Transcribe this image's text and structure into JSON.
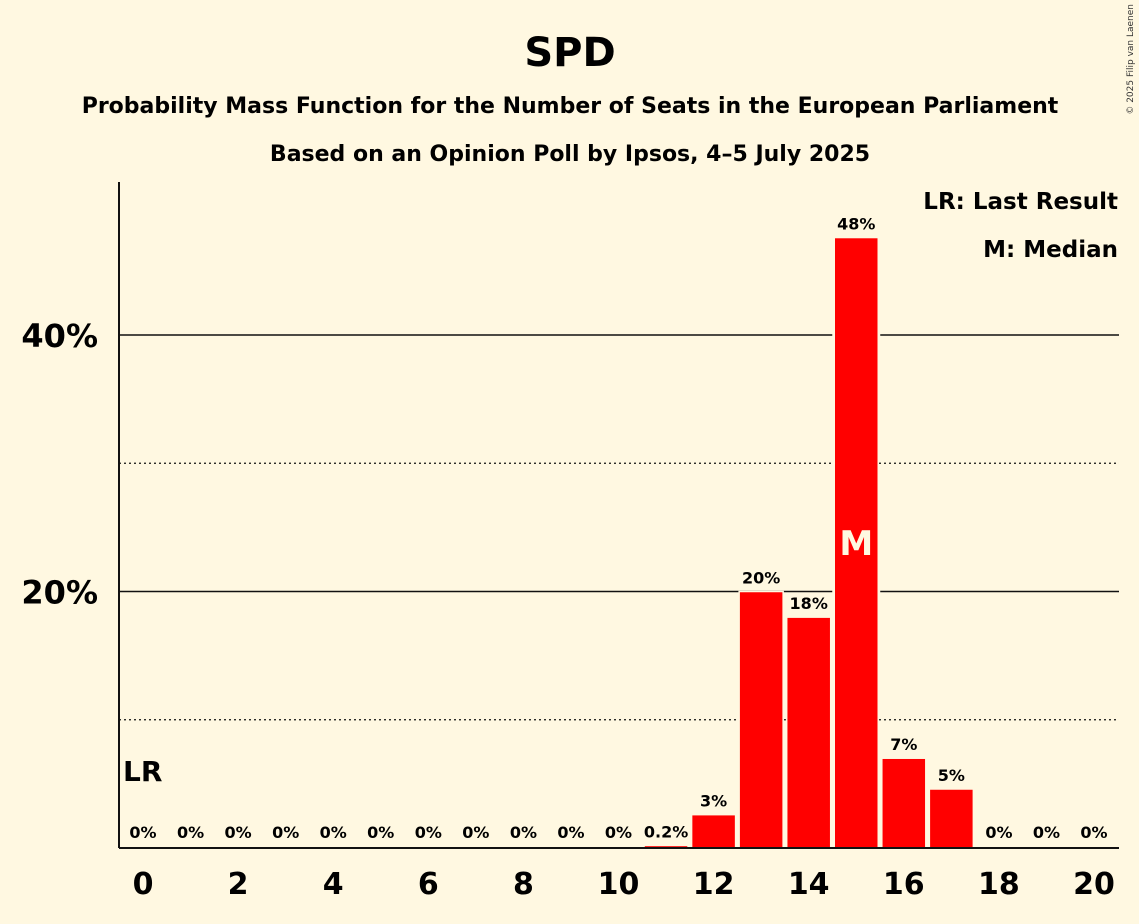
{
  "chart_data": {
    "type": "bar",
    "title": "SPD",
    "subtitle1": "Probability Mass Function for the Number of Seats in the European Parliament",
    "subtitle2": "Based on an Opinion Poll by Ipsos, 4–5 July 2025",
    "copyright": "© 2025 Filip van Laenen",
    "categories": [
      0,
      1,
      2,
      3,
      4,
      5,
      6,
      7,
      8,
      9,
      10,
      11,
      12,
      13,
      14,
      15,
      16,
      17,
      18,
      19,
      20
    ],
    "values": [
      0,
      0,
      0,
      0,
      0,
      0,
      0,
      0,
      0,
      0,
      0,
      0.2,
      2.6,
      20,
      18,
      47.6,
      7,
      4.6,
      0,
      0,
      0
    ],
    "value_labels": [
      "0%",
      "0%",
      "0%",
      "0%",
      "0%",
      "0%",
      "0%",
      "0%",
      "0%",
      "0%",
      "0%",
      "0.2%",
      "3%",
      "20%",
      "18%",
      "48%",
      "7%",
      "5%",
      "0%",
      "0%",
      "0%"
    ],
    "x_tick_labels": [
      "0",
      "2",
      "4",
      "6",
      "8",
      "10",
      "12",
      "14",
      "16",
      "18",
      "20"
    ],
    "y_ticks": [
      {
        "value": 20,
        "label": "20%",
        "style": "solid"
      },
      {
        "value": 40,
        "label": "40%",
        "style": "solid"
      }
    ],
    "y_minor_gridlines": [
      10,
      30
    ],
    "ylim": [
      0,
      52
    ],
    "bar_color": "#FF0000",
    "last_result_seat": 0,
    "last_result_marker": "LR",
    "median_seat": 15,
    "median_marker": "M",
    "legend": [
      "LR: Last Result",
      "M: Median"
    ]
  }
}
